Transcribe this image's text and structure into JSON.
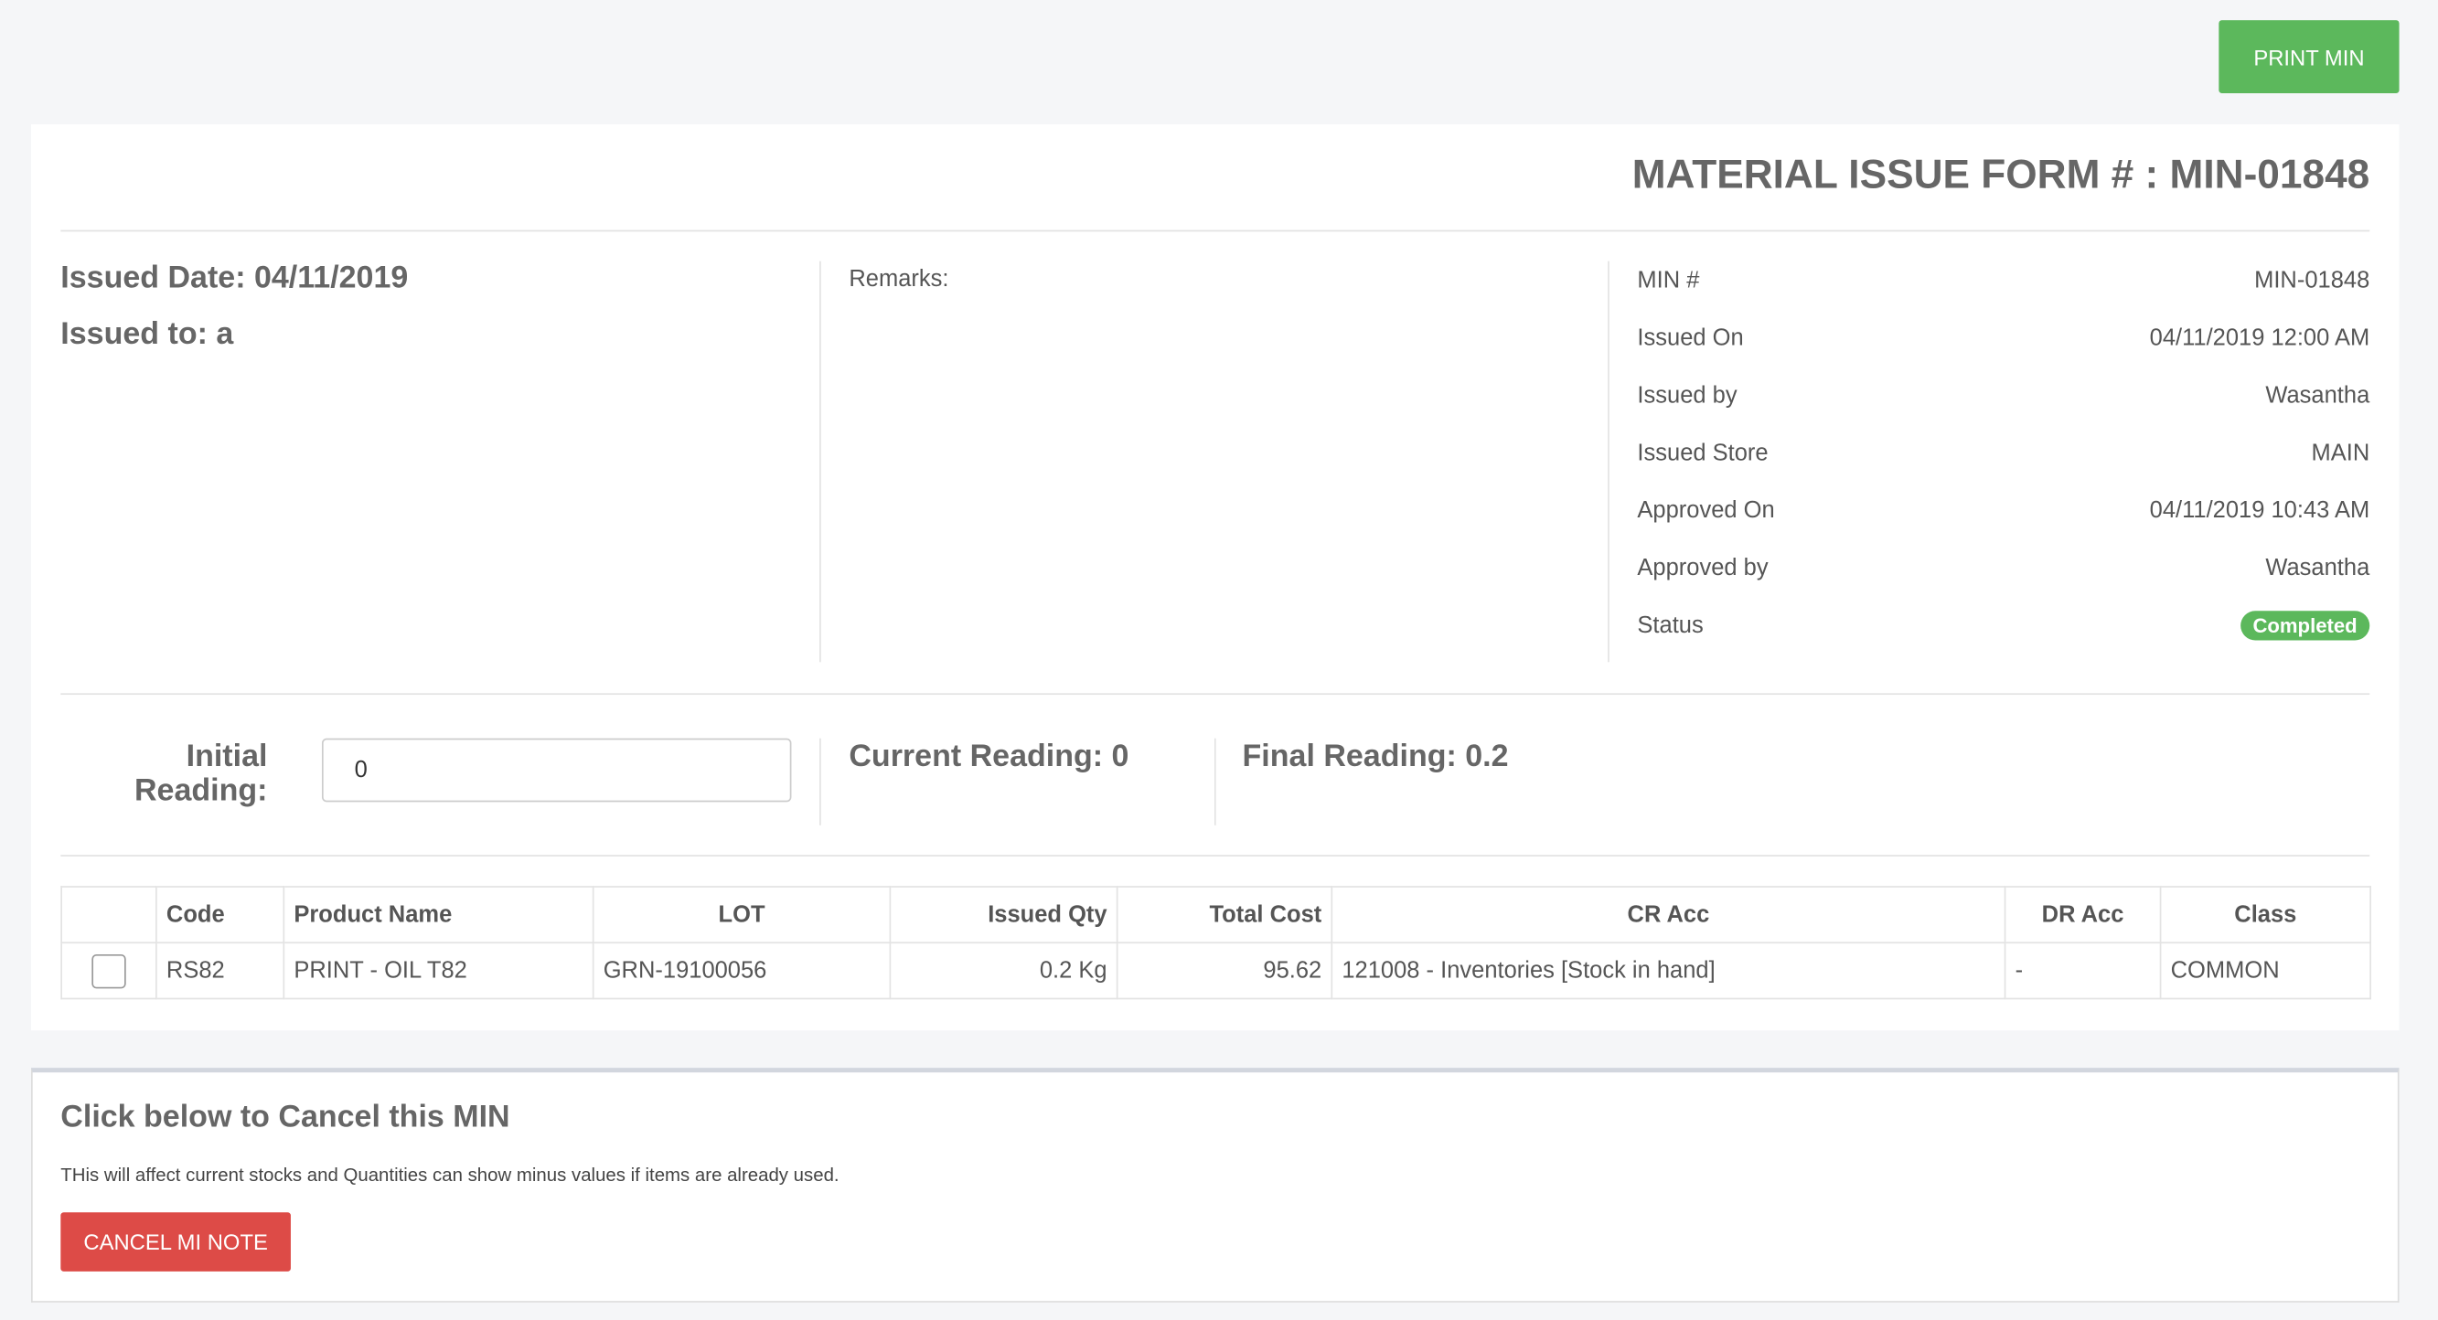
{
  "header": {
    "print_button": "PRINT MIN",
    "title": "MATERIAL ISSUE FORM # : MIN-01848"
  },
  "summary": {
    "issued_date": "Issued Date: 04/11/2019",
    "issued_to": "Issued to: a",
    "remarks_label": "Remarks:"
  },
  "details": [
    {
      "label": "MIN #",
      "value": "MIN-01848"
    },
    {
      "label": "Issued On",
      "value": "04/11/2019 12:00 AM"
    },
    {
      "label": "Issued by",
      "value": "Wasantha"
    },
    {
      "label": "Issued Store",
      "value": "MAIN"
    },
    {
      "label": "Approved On",
      "value": "04/11/2019 10:43 AM"
    },
    {
      "label": "Approved by",
      "value": "Wasantha"
    },
    {
      "label": "Status",
      "value": "Completed"
    }
  ],
  "readings": {
    "initial_label": "Initial Reading:",
    "initial_value": "0",
    "current": "Current Reading: 0",
    "final": "Final Reading: 0.2"
  },
  "table": {
    "columns": [
      "Code",
      "Product Name",
      "LOT",
      "Issued Qty",
      "Total Cost",
      "CR Acc",
      "DR Acc",
      "Class"
    ],
    "rows": [
      [
        "RS82",
        "PRINT - OIL T82",
        "GRN-19100056",
        "0.2 Kg",
        "95.62",
        "121008 - Inventories [Stock in hand]",
        "-",
        "COMMON"
      ]
    ]
  },
  "cancel": {
    "title": "Click below to Cancel this MIN",
    "note": "THis will affect current stocks and Quantities can show minus values if items are already used.",
    "button": "CANCEL MI NOTE"
  }
}
